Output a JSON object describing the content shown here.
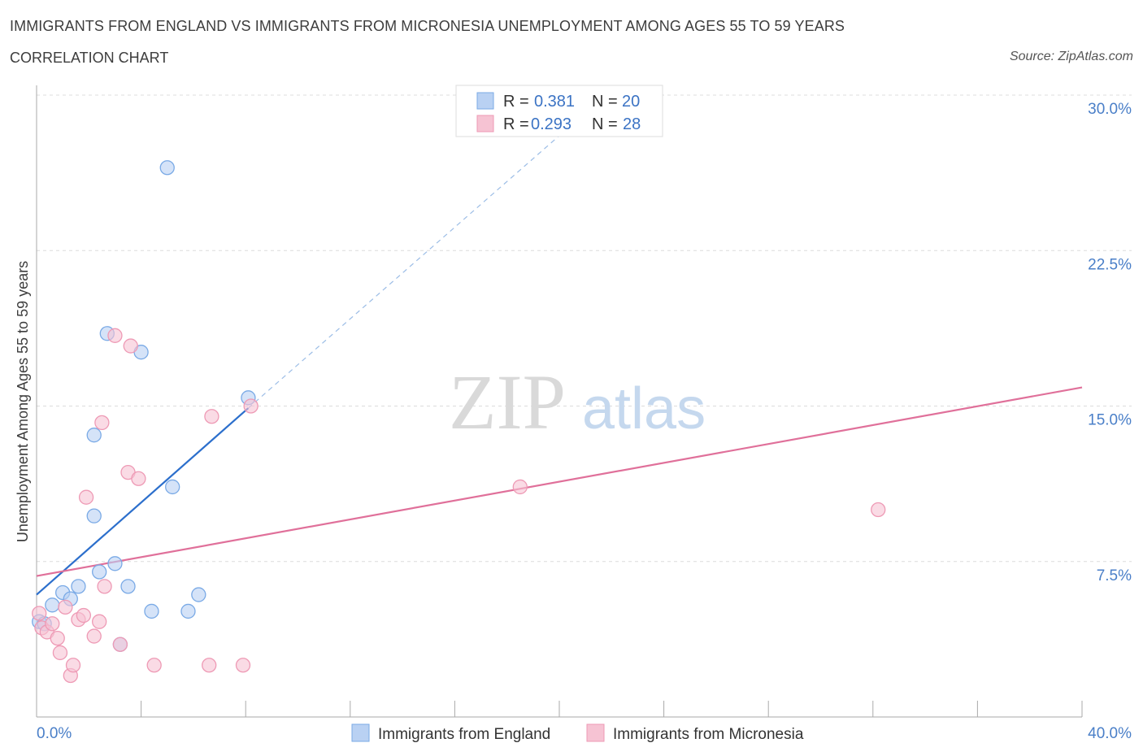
{
  "chart_data": {
    "type": "scatter",
    "title": "IMMIGRANTS FROM ENGLAND VS IMMIGRANTS FROM MICRONESIA UNEMPLOYMENT AMONG AGES 55 TO 59 YEARS",
    "subtitle": "CORRELATION CHART",
    "source": "Source: ZipAtlas.com",
    "ylabel": "Unemployment Among Ages 55 to 59 years",
    "xlim": [
      0,
      40
    ],
    "ylim": [
      0,
      30
    ],
    "y_ticks": [
      {
        "value": 7.5,
        "label": "7.5%"
      },
      {
        "value": 15.0,
        "label": "15.0%"
      },
      {
        "value": 22.5,
        "label": "22.5%"
      },
      {
        "value": 30.0,
        "label": "30.0%"
      }
    ],
    "x_tick_labels": {
      "min": "0.0%",
      "max": "40.0%"
    },
    "watermark": {
      "zip": "ZIP",
      "atlas": "atlas"
    },
    "legend": [
      {
        "r_label": "R =",
        "r_value": "0.381",
        "n_label": "N =",
        "n_value": "20"
      },
      {
        "r_label": "R =",
        "r_value": "0.293",
        "n_label": "N =",
        "n_value": "28"
      }
    ],
    "series": [
      {
        "name": "Immigrants from England",
        "color": "#7aaae6",
        "fill": "#b9d1f3",
        "line_color": "#2c6fcc",
        "trend": {
          "x0": 0,
          "y0": 5.9,
          "x1": 8.1,
          "y1": 14.9,
          "dash_to_x": 21.5,
          "dash_to_y": 29.7
        },
        "points": [
          [
            0.1,
            4.6
          ],
          [
            0.3,
            4.5
          ],
          [
            0.6,
            5.4
          ],
          [
            1.0,
            6.0
          ],
          [
            1.3,
            5.7
          ],
          [
            1.6,
            6.3
          ],
          [
            2.2,
            13.6
          ],
          [
            2.2,
            9.7
          ],
          [
            2.4,
            7.0
          ],
          [
            2.7,
            18.5
          ],
          [
            3.0,
            7.4
          ],
          [
            3.2,
            3.5
          ],
          [
            3.5,
            6.3
          ],
          [
            4.0,
            17.6
          ],
          [
            4.4,
            5.1
          ],
          [
            5.0,
            26.5
          ],
          [
            5.2,
            11.1
          ],
          [
            5.8,
            5.1
          ],
          [
            6.2,
            5.9
          ],
          [
            8.1,
            15.4
          ]
        ]
      },
      {
        "name": "Immigrants from Micronesia",
        "color": "#ee9ab5",
        "fill": "#f6c3d3",
        "line_color": "#e0709a",
        "trend": {
          "x0": 0,
          "y0": 6.8,
          "x1": 40,
          "y1": 15.9
        },
        "points": [
          [
            0.1,
            5.0
          ],
          [
            0.2,
            4.3
          ],
          [
            0.4,
            4.1
          ],
          [
            0.6,
            4.5
          ],
          [
            0.8,
            3.8
          ],
          [
            0.9,
            3.1
          ],
          [
            1.1,
            5.3
          ],
          [
            1.3,
            2.0
          ],
          [
            1.4,
            2.5
          ],
          [
            1.6,
            4.7
          ],
          [
            1.8,
            4.9
          ],
          [
            1.9,
            10.6
          ],
          [
            2.2,
            3.9
          ],
          [
            2.4,
            4.6
          ],
          [
            2.5,
            14.2
          ],
          [
            2.6,
            6.3
          ],
          [
            3.0,
            18.4
          ],
          [
            3.5,
            11.8
          ],
          [
            3.6,
            17.9
          ],
          [
            3.9,
            11.5
          ],
          [
            4.5,
            2.5
          ],
          [
            6.6,
            2.5
          ],
          [
            6.7,
            14.5
          ],
          [
            7.9,
            2.5
          ],
          [
            8.2,
            15.0
          ],
          [
            18.5,
            11.1
          ],
          [
            32.2,
            10.0
          ],
          [
            3.2,
            3.5
          ]
        ]
      }
    ]
  }
}
